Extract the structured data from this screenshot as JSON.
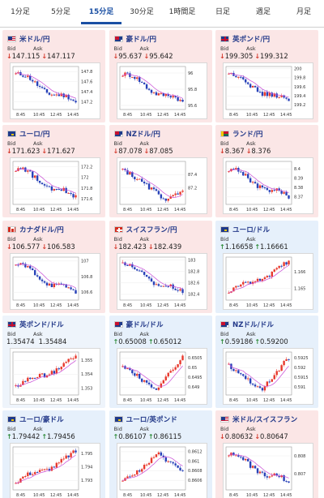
{
  "tabs": [
    {
      "label": "1分足",
      "active": false
    },
    {
      "label": "5分足",
      "active": false
    },
    {
      "label": "15分足",
      "active": true
    },
    {
      "label": "30分足",
      "active": false
    },
    {
      "label": "1時間足",
      "active": false
    },
    {
      "label": "日足",
      "active": false
    },
    {
      "label": "週足",
      "active": false
    },
    {
      "label": "月足",
      "active": false
    }
  ],
  "colors": {
    "accent": "#1a4fa3",
    "down": "#d4392c",
    "up": "#2e8b3a",
    "candle_up": "#e8382c",
    "candle_down": "#2741b8",
    "ma": "#c94bd6"
  },
  "x_ticks": [
    "8:45",
    "10:45",
    "12:45",
    "14:45"
  ],
  "cards": [
    {
      "title": "米ドル/円",
      "flag": "us",
      "bid_label": "Bid",
      "ask_label": "Ask",
      "direction": "down",
      "bid": "147.115",
      "ask": "147.117",
      "y_ticks": [
        "147.8",
        "147.6",
        "147.4",
        "147.2"
      ],
      "y_range": [
        147.05,
        147.9
      ],
      "trend": "down"
    },
    {
      "title": "豪ドル/円",
      "flag": "au",
      "bid_label": "Bid",
      "ask_label": "Ask",
      "direction": "down",
      "bid": "95.637",
      "ask": "95.642",
      "y_ticks": [
        "96",
        "95.8",
        "95.6"
      ],
      "y_range": [
        95.55,
        96.08
      ],
      "trend": "down"
    },
    {
      "title": "英ポンド/円",
      "flag": "gb",
      "bid_label": "Bid",
      "ask_label": "Ask",
      "direction": "down",
      "bid": "199.305",
      "ask": "199.312",
      "y_ticks": [
        "200",
        "199.8",
        "199.6",
        "199.4",
        "199.2"
      ],
      "y_range": [
        199.1,
        200.05
      ],
      "trend": "down"
    },
    {
      "title": "ユーロ/円",
      "flag": "eu",
      "bid_label": "Bid",
      "ask_label": "Ask",
      "direction": "down",
      "bid": "171.623",
      "ask": "171.627",
      "y_ticks": [
        "172.2",
        "172",
        "171.8",
        "171.6"
      ],
      "y_range": [
        171.5,
        172.3
      ],
      "trend": "down"
    },
    {
      "title": "NZドル/円",
      "flag": "nz",
      "bid_label": "Bid",
      "ask_label": "Ask",
      "direction": "down",
      "bid": "87.078",
      "ask": "87.085",
      "y_ticks": [
        "87.4",
        "87.2"
      ],
      "y_range": [
        86.95,
        87.6
      ],
      "trend": "downv"
    },
    {
      "title": "ランド/円",
      "flag": "za",
      "bid_label": "Bid",
      "ask_label": "Ask",
      "direction": "down",
      "bid": "8.367",
      "ask": "8.376",
      "y_ticks": [
        "8.4",
        "8.39",
        "8.38",
        "8.37"
      ],
      "y_range": [
        8.362,
        8.408
      ],
      "trend": "down"
    },
    {
      "title": "カナダドル/円",
      "flag": "ca",
      "bid_label": "Bid",
      "ask_label": "Ask",
      "direction": "down",
      "bid": "106.577",
      "ask": "106.583",
      "y_ticks": [
        "107",
        "106.8",
        "106.6"
      ],
      "y_range": [
        106.5,
        107.05
      ],
      "trend": "down"
    },
    {
      "title": "スイスフラン/円",
      "flag": "ch",
      "bid_label": "Bid",
      "ask_label": "Ask",
      "direction": "down",
      "bid": "182.423",
      "ask": "182.439",
      "y_ticks": [
        "183",
        "182.8",
        "182.6",
        "182.4"
      ],
      "y_range": [
        182.3,
        183.05
      ],
      "trend": "down"
    },
    {
      "title": "ユーロ/ドル",
      "flag": "eu",
      "bid_label": "Bid",
      "ask_label": "Ask",
      "direction": "up",
      "bid": "1.16658",
      "ask": "1.16661",
      "y_ticks": [
        "1.166",
        "1.165"
      ],
      "y_range": [
        1.1643,
        1.1669
      ],
      "trend": "up"
    },
    {
      "title": "英ポンド/ドル",
      "flag": "gb",
      "bid_label": "Bid",
      "ask_label": "Ask",
      "direction": "none",
      "bid": "1.35474",
      "ask": "1.35484",
      "y_ticks": [
        "1.355",
        "1.354",
        "1.353"
      ],
      "y_range": [
        1.3525,
        1.3556
      ],
      "trend": "up"
    },
    {
      "title": "豪ドル/ドル",
      "flag": "au",
      "bid_label": "Bid",
      "ask_label": "Ask",
      "direction": "up",
      "bid": "0.65008",
      "ask": "0.65012",
      "y_ticks": [
        "0.6505",
        "0.65",
        "0.6495",
        "0.649"
      ],
      "y_range": [
        0.6486,
        0.6508
      ],
      "trend": "upv"
    },
    {
      "title": "NZドル/ドル",
      "flag": "nz",
      "bid_label": "Bid",
      "ask_label": "Ask",
      "direction": "up",
      "bid": "0.59186",
      "ask": "0.59200",
      "y_ticks": [
        "0.5925",
        "0.592",
        "0.5915",
        "0.591"
      ],
      "y_range": [
        0.5906,
        0.5928
      ],
      "trend": "upv"
    },
    {
      "title": "ユーロ/豪ドル",
      "flag": "eu",
      "bid_label": "Bid",
      "ask_label": "Ask",
      "direction": "up",
      "bid": "1.79442",
      "ask": "1.79456",
      "y_ticks": [
        "1.795",
        "1.794",
        "1.793"
      ],
      "y_range": [
        1.7923,
        1.7955
      ],
      "trend": "up"
    },
    {
      "title": "ユーロ/英ポンド",
      "flag": "eu",
      "bid_label": "Bid",
      "ask_label": "Ask",
      "direction": "up",
      "bid": "0.86107",
      "ask": "0.86115",
      "y_ticks": [
        "0.8612",
        "0.861",
        "0.8608",
        "0.8606"
      ],
      "y_range": [
        0.8604,
        0.8613
      ],
      "trend": "updown"
    },
    {
      "title": "米ドル/スイスフラン",
      "flag": "us",
      "bid_label": "Bid",
      "ask_label": "Ask",
      "direction": "down",
      "bid": "0.80632",
      "ask": "0.80647",
      "y_ticks": [
        "0.808",
        "0.807"
      ],
      "y_range": [
        0.8061,
        0.8085
      ],
      "trend": "down"
    }
  ]
}
